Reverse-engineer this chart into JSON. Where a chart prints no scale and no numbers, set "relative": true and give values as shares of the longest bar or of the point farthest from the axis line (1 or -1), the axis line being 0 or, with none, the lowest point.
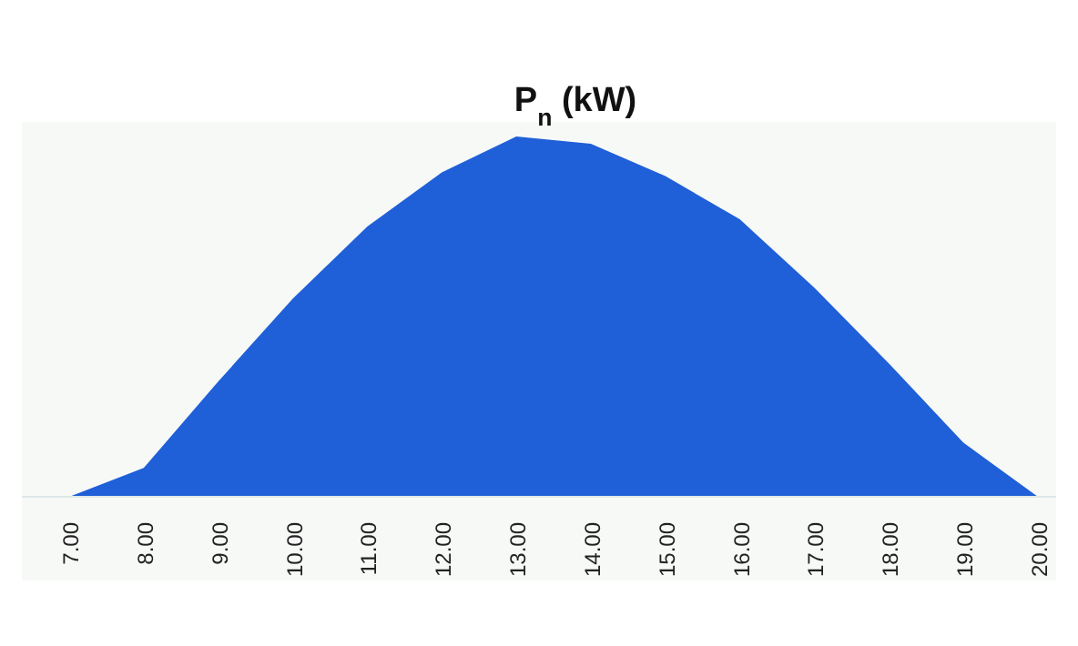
{
  "chart_data": {
    "type": "area",
    "title": "P$_{n}$ (kW)",
    "relative": true,
    "categories": [
      "7.00",
      "8.00",
      "9.00",
      "10.00",
      "11.00",
      "12.00",
      "13.00",
      "14.00",
      "15.00",
      "16.00",
      "17.00",
      "18.00",
      "19.00",
      "20.00"
    ],
    "series": [
      {
        "color": "#1f5fd8",
        "values": [
          0,
          0.08,
          0.32,
          0.55,
          0.75,
          0.9,
          1,
          0.98,
          0.89,
          0.77,
          0.58,
          0.37,
          0.15,
          0
        ]
      }
    ]
  }
}
